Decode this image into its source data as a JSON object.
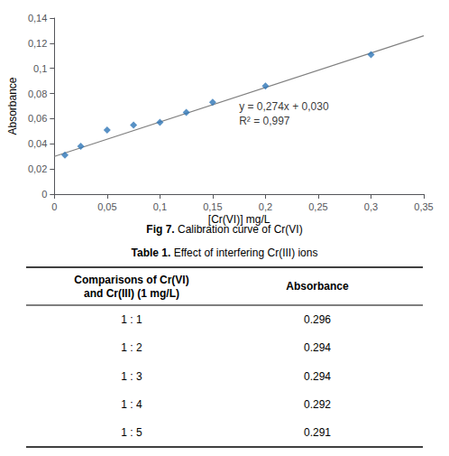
{
  "chart_data": {
    "type": "scatter",
    "xlabel": "[Cr(VI)] mg/L",
    "ylabel": "Absorbance",
    "series": [
      {
        "type": "line",
        "color": "#808080",
        "line_style": "solid",
        "x": [
          0,
          0.35
        ],
        "values": [
          0.03,
          0.1259
        ]
      },
      {
        "type": "scatter",
        "color": "#2e75b6",
        "marker": "diamond",
        "x": [
          0.01,
          0.025,
          0.05,
          0.075,
          0.1,
          0.125,
          0.15,
          0.2,
          0.3
        ],
        "values": [
          0.031,
          0.038,
          0.051,
          0.055,
          0.057,
          0.065,
          0.073,
          0.086,
          0.111
        ]
      }
    ],
    "xlim": [
      0,
      0.35
    ],
    "ylim": [
      0,
      0.14
    ],
    "xticks": [
      0,
      {
        "value": 0.05,
        "label": "0,05"
      },
      {
        "value": 0.1,
        "label": "0,1"
      },
      {
        "value": 0.15,
        "label": "0,15"
      },
      {
        "value": 0.2,
        "label": "0,2"
      },
      {
        "value": 0.25,
        "label": "0,25"
      },
      {
        "value": 0.3,
        "label": "0,3"
      },
      {
        "value": 0.35,
        "label": "0,35"
      }
    ],
    "yticks": [
      0,
      {
        "value": 0.02,
        "label": "0,02"
      },
      {
        "value": 0.04,
        "label": "0,04"
      },
      {
        "value": 0.06,
        "label": "0,06"
      },
      {
        "value": 0.08,
        "label": "0,08"
      },
      {
        "value": 0.1,
        "label": "0,1"
      },
      {
        "value": 0.12,
        "label": "0,12"
      },
      {
        "value": 0.14,
        "label": "0,14"
      }
    ],
    "grid": false,
    "annotation": {
      "text": [
        "y = 0,274x + 0,030",
        "R² = 0,997"
      ],
      "x": 0.175,
      "y": 0.064
    },
    "caption": {
      "bold": "Fig 7.",
      "text": "Calibration curve of Cr(VI)"
    },
    "table": {
      "title": {
        "bold": "Table 1.",
        "text": "Effect of interfering Cr(III) ions"
      },
      "columns": [
        [
          "Comparisons of Cr(VI)",
          "and Cr(III) (1 mg/L)"
        ],
        [
          "Absorbance"
        ]
      ],
      "rows": [
        [
          "1 : 1",
          "0.296"
        ],
        [
          "1 : 2",
          "0.294"
        ],
        [
          "1 : 3",
          "0.294"
        ],
        [
          "1 : 4",
          "0.292"
        ],
        [
          "1 : 5",
          "0.291"
        ]
      ]
    }
  }
}
